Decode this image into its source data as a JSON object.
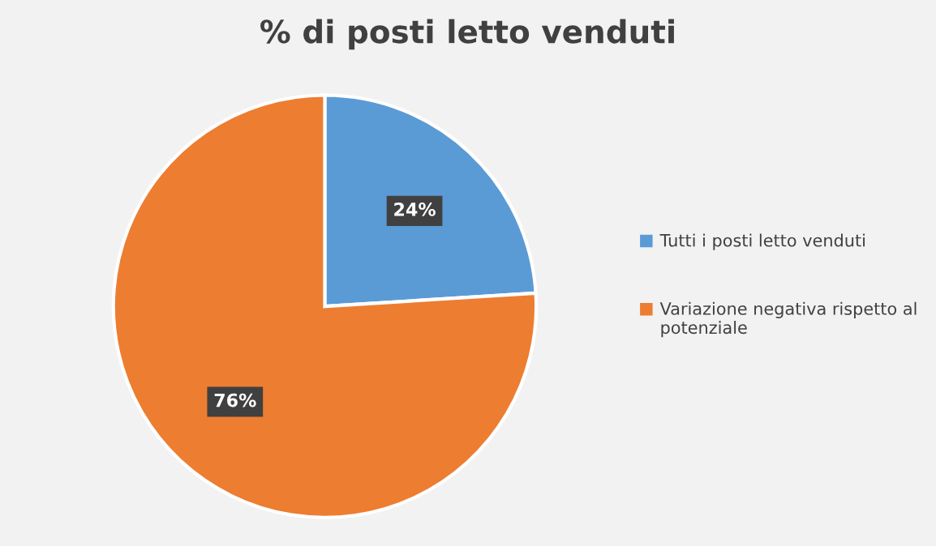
{
  "chart_data": {
    "type": "pie",
    "title": "% di posti letto venduti",
    "categories": [
      "Tutti i posti letto venduti",
      "Variazione negativa rispetto al potenziale"
    ],
    "values": [
      24,
      76
    ],
    "colors": [
      "#5b9bd5",
      "#ed7d31"
    ],
    "value_labels": [
      "24%",
      "76%"
    ],
    "legend": "right"
  }
}
